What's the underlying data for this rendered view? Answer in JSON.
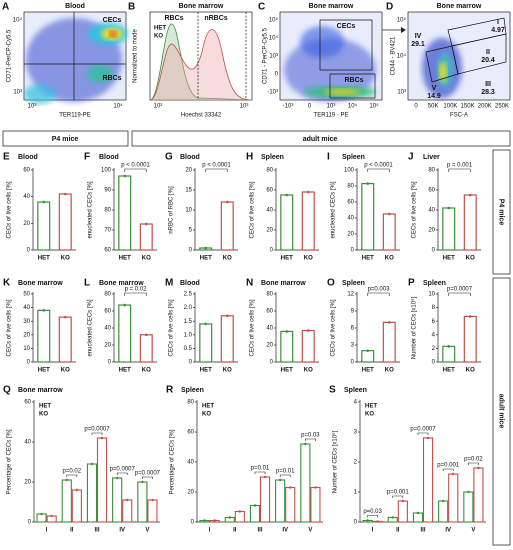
{
  "group_labels": [
    "P4 mice",
    "adult mice"
  ],
  "flow_panels": [
    {
      "panel": "A",
      "title": "Blood",
      "xlabel": "TER119-PE",
      "ylabel": "CD71-PerCP-Cy5.5",
      "xticks": [
        "10³",
        "10⁴"
      ],
      "yticks": [
        "10³",
        "10⁴"
      ],
      "gates": [
        "CECs",
        "RBCs"
      ]
    },
    {
      "panel": "B",
      "title": "Bone marrow",
      "xlabel": "Hoechst 33342",
      "ylabel": "Normalized to mode",
      "xticks": [
        "10²",
        "10³"
      ],
      "yticks": [],
      "gates": [
        "RBCs",
        "nRBCs"
      ],
      "legend": [
        "HET",
        "KO"
      ]
    },
    {
      "panel": "C",
      "title": "Bone marrow",
      "xlabel": "TER119 - PE",
      "ylabel": "CD71 - PerCP-Cy5.5",
      "xticks": [
        "-10³",
        "0",
        "10³",
        "10⁴",
        "10⁵"
      ],
      "yticks": [
        "-10³",
        "0",
        "10³",
        "10⁴",
        "10⁵"
      ],
      "gates": [
        "CECs",
        "RBCs"
      ]
    },
    {
      "panel": "D",
      "title": "Bone marrow",
      "xlabel": "FSC-A",
      "ylabel": "CD44 - BV421",
      "xticks": [
        "0",
        "50K",
        "100K",
        "150K",
        "200K",
        "250K"
      ],
      "yticks": [
        "10³",
        "10⁴",
        "10⁵"
      ],
      "gates": [
        {
          "name": "I",
          "value": 4.97
        },
        {
          "name": "IV",
          "value": 29.1
        },
        {
          "name": "II",
          "value": 20.4
        },
        {
          "name": "III",
          "value": 28.3
        },
        {
          "name": "V",
          "value": 14.9
        }
      ]
    }
  ],
  "chart_data": [
    {
      "type": "bar",
      "panel": "E",
      "title": "Blood",
      "ylabel": "CECs of live cells [%]",
      "categories": [
        "HET",
        "KO"
      ],
      "values": [
        36,
        42
      ],
      "colors": [
        "#3a8f3a",
        "#c0504d"
      ],
      "ylim": [
        0,
        60
      ],
      "yticks": [
        0,
        20,
        40,
        60
      ]
    },
    {
      "type": "bar",
      "panel": "F",
      "title": "Blood",
      "ylabel": "enucleated CECs [%]",
      "categories": [
        "HET",
        "KO"
      ],
      "values": [
        97,
        73
      ],
      "colors": [
        "#3a8f3a",
        "#c0504d"
      ],
      "ylim": [
        60,
        100
      ],
      "yticks": [
        60,
        70,
        80,
        90,
        100
      ],
      "annotation": "p < 0.0001"
    },
    {
      "type": "bar",
      "panel": "G",
      "title": "Blood",
      "ylabel": "nRBC of RBC [%]",
      "categories": [
        "HET",
        "KO"
      ],
      "values": [
        0.5,
        12
      ],
      "colors": [
        "#3a8f3a",
        "#c0504d"
      ],
      "ylim": [
        0,
        20
      ],
      "yticks": [
        0,
        5,
        10,
        15,
        20
      ],
      "annotation": "p < 0.0001"
    },
    {
      "type": "bar",
      "panel": "H",
      "title": "Spleen",
      "ylabel": "CECs of live cells [%]",
      "categories": [
        "HET",
        "KO"
      ],
      "values": [
        55,
        58
      ],
      "colors": [
        "#3a8f3a",
        "#c0504d"
      ],
      "ylim": [
        0,
        80
      ],
      "yticks": [
        0,
        20,
        40,
        60,
        80
      ]
    },
    {
      "type": "bar",
      "panel": "I",
      "title": "Spleen",
      "ylabel": "enucleated CECs [%]",
      "categories": [
        "HET",
        "KO"
      ],
      "values": [
        83,
        45
      ],
      "colors": [
        "#3a8f3a",
        "#c0504d"
      ],
      "ylim": [
        0,
        100
      ],
      "yticks": [
        0,
        20,
        40,
        60,
        80,
        100
      ],
      "annotation": "p < 0.0001"
    },
    {
      "type": "bar",
      "panel": "J",
      "title": "Liver",
      "ylabel": "CECs of live cells [%]",
      "categories": [
        "HET",
        "KO"
      ],
      "values": [
        42,
        55
      ],
      "colors": [
        "#3a8f3a",
        "#c0504d"
      ],
      "ylim": [
        0,
        80
      ],
      "yticks": [
        0,
        20,
        40,
        60,
        80
      ],
      "annotation": "p = 0.001"
    },
    {
      "type": "bar",
      "panel": "K",
      "title": "Bone marrow",
      "ylabel": "CECs of live cells [%]",
      "categories": [
        "HET",
        "KO"
      ],
      "values": [
        38,
        33
      ],
      "colors": [
        "#3a8f3a",
        "#c0504d"
      ],
      "ylim": [
        0,
        50
      ],
      "yticks": [
        0,
        10,
        20,
        30,
        40,
        50
      ]
    },
    {
      "type": "bar",
      "panel": "L",
      "title": "Bone marrow",
      "ylabel": "enucleated CECs [%]",
      "categories": [
        "HET",
        "KO"
      ],
      "values": [
        67,
        32
      ],
      "colors": [
        "#3a8f3a",
        "#c0504d"
      ],
      "ylim": [
        0,
        80
      ],
      "yticks": [
        0,
        20,
        40,
        60,
        80
      ],
      "annotation": "p = 0.02"
    },
    {
      "type": "bar",
      "panel": "M",
      "title": "Blood",
      "ylabel": "CECs of live cells [%]",
      "categories": [
        "HET",
        "KO"
      ],
      "values": [
        1.4,
        1.7
      ],
      "colors": [
        "#3a8f3a",
        "#c0504d"
      ],
      "ylim": [
        0,
        2.5
      ],
      "yticks": [
        0,
        0.5,
        {
          "value": 1,
          "label": "1.0"
        },
        1.5,
        {
          "value": 2,
          "label": "2.0"
        },
        2.5
      ]
    },
    {
      "type": "bar",
      "panel": "N",
      "title": "Bone marrow",
      "ylabel": "CECs of live cells [%]",
      "categories": [
        "HET",
        "KO"
      ],
      "values": [
        36,
        37
      ],
      "colors": [
        "#3a8f3a",
        "#c0504d"
      ],
      "ylim": [
        0,
        80
      ],
      "yticks": [
        0,
        20,
        40,
        60,
        80
      ]
    },
    {
      "type": "bar",
      "panel": "O",
      "title": "Spleen",
      "ylabel": "CECs of live cells [%]",
      "categories": [
        "HET",
        "KO"
      ],
      "values": [
        2,
        7
      ],
      "colors": [
        "#3a8f3a",
        "#c0504d"
      ],
      "ylim": [
        0,
        12
      ],
      "yticks": [
        0,
        3,
        6,
        9,
        12
      ],
      "annotation": "p=0.003"
    },
    {
      "type": "bar",
      "panel": "P",
      "title": "Spleen",
      "ylabel": "Number of CECs [x10⁶]",
      "categories": [
        "HET",
        "KO"
      ],
      "values": [
        2.3,
        6.7
      ],
      "colors": [
        "#3a8f3a",
        "#c0504d"
      ],
      "ylim": [
        0,
        10
      ],
      "yticks": [
        0,
        2,
        4,
        6,
        8,
        10
      ],
      "annotation": "p=0.0007"
    },
    {
      "type": "grouped",
      "panel": "Q",
      "title": "Bone marrow",
      "ylabel": "Percentage of CECs [%]",
      "categories": [
        "I",
        "II",
        "III",
        "IV",
        "V"
      ],
      "series": [
        {
          "name": "HET",
          "color": "#3a8f3a",
          "values": [
            4,
            21,
            29,
            22,
            20
          ]
        },
        {
          "name": "KO",
          "color": "#c0504d",
          "values": [
            3,
            16,
            42,
            11,
            11
          ]
        }
      ],
      "ylim": [
        0,
        60
      ],
      "yticks": [
        0,
        20,
        40,
        60
      ],
      "annotations": [
        null,
        "p=0.02",
        "p=0.0007",
        "p=0.0007",
        "p=0.0007"
      ]
    },
    {
      "type": "grouped",
      "panel": "R",
      "title": "Spleen",
      "ylabel": "Percentage of CECs [%]",
      "categories": [
        "I",
        "II",
        "III",
        "IV",
        "V"
      ],
      "series": [
        {
          "name": "HET",
          "color": "#3a8f3a",
          "values": [
            1,
            3,
            11,
            28,
            52
          ]
        },
        {
          "name": "KO",
          "color": "#c0504d",
          "values": [
            1,
            7,
            30,
            23,
            23
          ]
        }
      ],
      "ylim": [
        0,
        80
      ],
      "yticks": [
        0,
        20,
        40,
        60,
        80
      ],
      "annotations": [
        null,
        null,
        "p=0.01",
        "p=0.01",
        "p=0.03"
      ]
    },
    {
      "type": "grouped",
      "panel": "S",
      "title": "Spleen",
      "ylabel": "Number of CECs [x10⁶]",
      "categories": [
        "I",
        "II",
        "III",
        "IV",
        "V"
      ],
      "series": [
        {
          "name": "HET",
          "color": "#3a8f3a",
          "values": [
            0.05,
            0.15,
            0.3,
            0.7,
            1
          ]
        },
        {
          "name": "KO",
          "color": "#c0504d",
          "values": [
            0.02,
            0.7,
            2.8,
            1.6,
            1.8
          ]
        }
      ],
      "ylim": [
        0,
        4
      ],
      "yticks": [
        0,
        1,
        2,
        3,
        4
      ],
      "annotations": [
        "p=0.03",
        "p=0.001",
        "p=0.0007",
        "p=0.001",
        "p=0.02"
      ]
    }
  ]
}
